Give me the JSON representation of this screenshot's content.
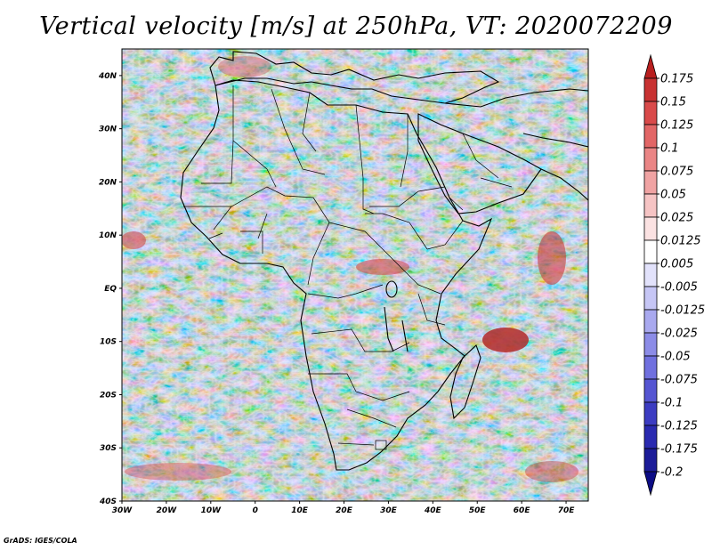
{
  "title": "Vertical velocity [m/s] at 250hPa, VT: 2020072209",
  "map": {
    "region": "Africa",
    "lon_range": [
      -30,
      75
    ],
    "lat_range": [
      -40,
      45
    ],
    "lat_labels": [
      "40N",
      "30N",
      "20N",
      "10N",
      "EQ",
      "10S",
      "20S",
      "30S",
      "40S"
    ],
    "lon_labels": [
      "30W",
      "20W",
      "10W",
      "0",
      "10E",
      "20E",
      "30E",
      "40E",
      "50E",
      "60E",
      "70E"
    ],
    "lat_values": [
      40,
      30,
      20,
      10,
      0,
      -10,
      -20,
      -30,
      -40
    ],
    "lon_values": [
      -30,
      -20,
      -10,
      0,
      10,
      20,
      30,
      40,
      50,
      60,
      70
    ]
  },
  "colorbar": {
    "labels": [
      "0.175",
      "0.15",
      "0.125",
      "0.1",
      "0.075",
      "0.05",
      "0.025",
      "0.0125",
      "0.005",
      "-0.005",
      "-0.0125",
      "-0.025",
      "-0.05",
      "-0.075",
      "-0.1",
      "-0.125",
      "-0.175",
      "-0.2"
    ],
    "colors": [
      "#b81f1f",
      "#c83232",
      "#d94a4a",
      "#e26666",
      "#ea8585",
      "#f0a3a3",
      "#f6c4c4",
      "#fbe2e2",
      "#ffffff",
      "#e2e2fb",
      "#c6c6f5",
      "#a9a9ef",
      "#8c8ce7",
      "#7070df",
      "#5555d2",
      "#3c3cc2",
      "#2a2ab0",
      "#1c1c98",
      "#0c0c85"
    ]
  },
  "credit": "GrADS: IGES/COLA"
}
